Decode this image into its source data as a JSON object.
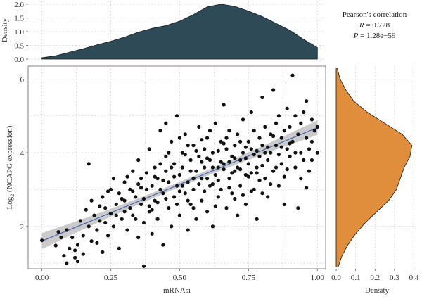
{
  "stats": {
    "title": "Pearson's correlation",
    "r_label": "R",
    "r_text": " = 0.728",
    "p_label": "P",
    "p_text": " = 1.28e−59"
  },
  "chart_data": [
    {
      "type": "scatter",
      "panel": "main",
      "xlabel": "mRNAsi",
      "ylabel_prefix": "Log",
      "ylabel_sub": "2",
      "ylabel_suffix": " (NCAPG expression)",
      "xlim": [
        -0.05,
        1.03
      ],
      "ylim": [
        0.85,
        6.35
      ],
      "x_ticks": [
        0.0,
        0.25,
        0.5,
        0.75,
        1.0
      ],
      "x_tick_labels": [
        "0.00",
        "0.25",
        "0.50",
        "0.75",
        "1.00"
      ],
      "y_ticks": [
        2,
        4,
        6
      ],
      "y_tick_labels": [
        "2",
        "4",
        "6"
      ],
      "grid": true,
      "regression": {
        "slope": 3.08,
        "intercept": 1.6,
        "ci_halfwidth": [
          0.22,
          0.07,
          0.2
        ]
      },
      "points": [
        [
          0.0,
          1.62
        ],
        [
          0.05,
          1.48
        ],
        [
          0.07,
          1.7
        ],
        [
          0.08,
          1.2
        ],
        [
          0.09,
          1.9
        ],
        [
          0.09,
          1.0
        ],
        [
          0.1,
          1.4
        ],
        [
          0.12,
          1.35
        ],
        [
          0.12,
          1.15
        ],
        [
          0.13,
          1.05
        ],
        [
          0.13,
          1.5
        ],
        [
          0.14,
          2.15
        ],
        [
          0.15,
          1.75
        ],
        [
          0.15,
          1.25
        ],
        [
          0.17,
          3.7
        ],
        [
          0.17,
          2.0
        ],
        [
          0.18,
          1.6
        ],
        [
          0.19,
          2.3
        ],
        [
          0.2,
          1.9
        ],
        [
          0.21,
          2.55
        ],
        [
          0.22,
          2.8
        ],
        [
          0.22,
          1.3
        ],
        [
          0.23,
          2.1
        ],
        [
          0.24,
          1.75
        ],
        [
          0.25,
          2.35
        ],
        [
          0.26,
          3.3
        ],
        [
          0.26,
          2.0
        ],
        [
          0.27,
          2.6
        ],
        [
          0.28,
          1.4
        ],
        [
          0.28,
          2.9
        ],
        [
          0.29,
          2.2
        ],
        [
          0.3,
          3.2
        ],
        [
          0.3,
          2.7
        ],
        [
          0.31,
          1.9
        ],
        [
          0.32,
          2.5
        ],
        [
          0.32,
          3.0
        ],
        [
          0.33,
          2.3
        ],
        [
          0.33,
          3.5
        ],
        [
          0.34,
          2.8
        ],
        [
          0.35,
          1.7
        ],
        [
          0.35,
          3.8
        ],
        [
          0.36,
          2.6
        ],
        [
          0.36,
          3.3
        ],
        [
          0.37,
          0.92
        ],
        [
          0.37,
          2.1
        ],
        [
          0.38,
          3.0
        ],
        [
          0.39,
          2.4
        ],
        [
          0.39,
          4.1
        ],
        [
          0.4,
          3.1
        ],
        [
          0.4,
          1.8
        ],
        [
          0.41,
          3.6
        ],
        [
          0.41,
          2.7
        ],
        [
          0.42,
          3.3
        ],
        [
          0.42,
          2.2
        ],
        [
          0.43,
          4.6
        ],
        [
          0.43,
          3.0
        ],
        [
          0.44,
          1.5
        ],
        [
          0.44,
          2.9
        ],
        [
          0.45,
          3.5
        ],
        [
          0.45,
          3.9
        ],
        [
          0.46,
          2.5
        ],
        [
          0.46,
          3.2
        ],
        [
          0.47,
          2.0
        ],
        [
          0.47,
          4.3
        ],
        [
          0.48,
          3.7
        ],
        [
          0.48,
          2.8
        ],
        [
          0.49,
          3.1
        ],
        [
          0.49,
          5.0
        ],
        [
          0.5,
          3.4
        ],
        [
          0.5,
          2.3
        ],
        [
          0.51,
          4.0
        ],
        [
          0.51,
          3.6
        ],
        [
          0.52,
          2.9
        ],
        [
          0.52,
          4.5
        ],
        [
          0.53,
          3.2
        ],
        [
          0.53,
          1.9
        ],
        [
          0.54,
          3.8
        ],
        [
          0.54,
          2.6
        ],
        [
          0.55,
          4.2
        ],
        [
          0.55,
          3.0
        ],
        [
          0.56,
          3.5
        ],
        [
          0.56,
          2.2
        ],
        [
          0.57,
          4.7
        ],
        [
          0.57,
          3.9
        ],
        [
          0.58,
          2.7
        ],
        [
          0.58,
          3.3
        ],
        [
          0.59,
          4.1
        ],
        [
          0.59,
          3.6
        ],
        [
          0.6,
          2.4
        ],
        [
          0.6,
          4.4
        ],
        [
          0.61,
          3.1
        ],
        [
          0.61,
          3.8
        ],
        [
          0.62,
          2.0
        ],
        [
          0.62,
          4.0
        ],
        [
          0.63,
          3.4
        ],
        [
          0.63,
          4.8
        ],
        [
          0.64,
          2.8
        ],
        [
          0.64,
          3.6
        ],
        [
          0.65,
          4.3
        ],
        [
          0.65,
          3.0
        ],
        [
          0.66,
          5.3
        ],
        [
          0.66,
          3.7
        ],
        [
          0.67,
          2.5
        ],
        [
          0.67,
          4.1
        ],
        [
          0.68,
          3.3
        ],
        [
          0.68,
          4.6
        ],
        [
          0.69,
          3.9
        ],
        [
          0.69,
          2.9
        ],
        [
          0.7,
          4.2
        ],
        [
          0.7,
          3.5
        ],
        [
          0.71,
          2.3
        ],
        [
          0.71,
          4.5
        ],
        [
          0.72,
          3.8
        ],
        [
          0.72,
          3.1
        ],
        [
          0.73,
          4.9
        ],
        [
          0.73,
          4.0
        ],
        [
          0.74,
          3.4
        ],
        [
          0.74,
          2.6
        ],
        [
          0.75,
          4.3
        ],
        [
          0.75,
          3.7
        ],
        [
          0.76,
          5.1
        ],
        [
          0.76,
          4.1
        ],
        [
          0.77,
          3.0
        ],
        [
          0.77,
          4.6
        ],
        [
          0.78,
          3.6
        ],
        [
          0.78,
          2.2
        ],
        [
          0.79,
          4.4
        ],
        [
          0.79,
          3.9
        ],
        [
          0.8,
          5.5
        ],
        [
          0.8,
          4.2
        ],
        [
          0.81,
          3.3
        ],
        [
          0.81,
          4.7
        ],
        [
          0.82,
          3.8
        ],
        [
          0.82,
          2.8
        ],
        [
          0.83,
          4.5
        ],
        [
          0.83,
          4.0
        ],
        [
          0.84,
          5.7
        ],
        [
          0.84,
          3.5
        ],
        [
          0.85,
          4.8
        ],
        [
          0.85,
          4.2
        ],
        [
          0.86,
          3.1
        ],
        [
          0.86,
          5.0
        ],
        [
          0.87,
          4.4
        ],
        [
          0.87,
          3.7
        ],
        [
          0.88,
          4.6
        ],
        [
          0.88,
          2.6
        ],
        [
          0.89,
          4.1
        ],
        [
          0.89,
          5.2
        ],
        [
          0.9,
          3.9
        ],
        [
          0.9,
          4.7
        ],
        [
          0.91,
          6.1
        ],
        [
          0.91,
          4.3
        ],
        [
          0.92,
          3.6
        ],
        [
          0.92,
          5.0
        ],
        [
          0.93,
          4.5
        ],
        [
          0.93,
          2.5
        ],
        [
          0.94,
          4.8
        ],
        [
          0.94,
          4.0
        ],
        [
          0.95,
          5.1
        ],
        [
          0.95,
          3.8
        ],
        [
          0.96,
          4.4
        ],
        [
          0.96,
          5.4
        ],
        [
          0.97,
          4.1
        ],
        [
          0.97,
          3.5
        ],
        [
          0.98,
          4.9
        ],
        [
          0.98,
          4.3
        ],
        [
          0.99,
          4.6
        ],
        [
          1.0,
          4.0
        ],
        [
          1.0,
          4.7
        ],
        [
          0.5,
          4.4
        ],
        [
          0.52,
          3.95
        ],
        [
          0.55,
          3.3
        ],
        [
          0.58,
          4.35
        ],
        [
          0.6,
          3.85
        ],
        [
          0.62,
          3.15
        ],
        [
          0.64,
          4.05
        ],
        [
          0.66,
          3.55
        ],
        [
          0.68,
          3.05
        ],
        [
          0.7,
          3.85
        ],
        [
          0.72,
          4.3
        ],
        [
          0.74,
          3.85
        ],
        [
          0.76,
          3.45
        ],
        [
          0.78,
          4.05
        ],
        [
          0.8,
          3.65
        ],
        [
          0.82,
          4.15
        ],
        [
          0.84,
          4.45
        ],
        [
          0.86,
          3.95
        ],
        [
          0.88,
          3.35
        ],
        [
          0.9,
          4.25
        ],
        [
          0.92,
          4.0
        ],
        [
          0.94,
          3.3
        ],
        [
          0.96,
          3.05
        ],
        [
          0.98,
          3.8
        ],
        [
          0.45,
          4.8
        ],
        [
          0.47,
          3.6
        ],
        [
          0.49,
          2.6
        ],
        [
          0.51,
          3.1
        ],
        [
          0.53,
          4.2
        ],
        [
          0.55,
          2.5
        ],
        [
          0.57,
          3.15
        ],
        [
          0.59,
          2.95
        ],
        [
          0.61,
          4.6
        ],
        [
          0.63,
          2.55
        ],
        [
          0.65,
          3.75
        ],
        [
          0.67,
          4.4
        ],
        [
          0.69,
          3.45
        ],
        [
          0.71,
          3.6
        ],
        [
          0.73,
          2.85
        ],
        [
          0.75,
          3.35
        ],
        [
          0.77,
          3.95
        ],
        [
          0.79,
          3.25
        ],
        [
          0.81,
          4.0
        ],
        [
          0.83,
          3.15
        ],
        [
          0.85,
          3.6
        ],
        [
          0.87,
          4.15
        ],
        [
          0.89,
          3.55
        ],
        [
          0.3,
          2.4
        ],
        [
          0.33,
          2.95
        ],
        [
          0.36,
          3.05
        ],
        [
          0.39,
          2.55
        ],
        [
          0.41,
          3.35
        ],
        [
          0.43,
          3.7
        ],
        [
          0.44,
          3.25
        ],
        [
          0.46,
          4.0
        ],
        [
          0.48,
          3.35
        ],
        [
          0.5,
          2.95
        ],
        [
          0.54,
          3.5
        ],
        [
          0.56,
          4.05
        ],
        [
          0.58,
          3.75
        ],
        [
          0.6,
          3.3
        ],
        [
          0.62,
          3.6
        ],
        [
          0.64,
          3.25
        ],
        [
          0.66,
          4.25
        ],
        [
          0.68,
          3.75
        ],
        [
          0.7,
          2.75
        ],
        [
          0.72,
          3.55
        ],
        [
          0.74,
          4.15
        ],
        [
          0.76,
          2.95
        ],
        [
          0.78,
          3.45
        ],
        [
          0.8,
          2.9
        ],
        [
          0.23,
          2.5
        ],
        [
          0.25,
          3.0
        ],
        [
          0.27,
          2.3
        ],
        [
          0.29,
          2.75
        ],
        [
          0.31,
          3.35
        ],
        [
          0.34,
          2.2
        ],
        [
          0.37,
          2.75
        ],
        [
          0.38,
          3.45
        ],
        [
          0.4,
          2.45
        ],
        [
          0.42,
          2.65
        ],
        [
          0.2,
          1.55
        ],
        [
          0.16,
          2.45
        ],
        [
          0.11,
          1.7
        ],
        [
          0.06,
          1.85
        ],
        [
          0.18,
          2.7
        ],
        [
          0.24,
          2.95
        ],
        [
          0.21,
          2.15
        ],
        [
          0.35,
          3.15
        ],
        [
          0.45,
          2.75
        ],
        [
          0.53,
          2.7
        ]
      ]
    },
    {
      "type": "area",
      "panel": "top-marginal",
      "xlabel": "",
      "ylabel": "Density",
      "color": "#2e4a56",
      "ylim": [
        0,
        2.1
      ],
      "y_ticks": [
        0.0,
        0.5,
        1.0,
        1.5,
        2.0
      ],
      "y_tick_labels": [
        "0.0",
        "0.5",
        "1.0",
        "1.5",
        "2.0"
      ],
      "x": [
        0.0,
        0.05,
        0.1,
        0.15,
        0.2,
        0.25,
        0.3,
        0.35,
        0.4,
        0.45,
        0.5,
        0.55,
        0.6,
        0.65,
        0.7,
        0.75,
        0.8,
        0.85,
        0.9,
        0.95,
        1.0
      ],
      "density": [
        0.05,
        0.12,
        0.25,
        0.38,
        0.52,
        0.65,
        0.8,
        0.98,
        1.12,
        1.22,
        1.38,
        1.62,
        1.9,
        2.0,
        1.92,
        1.75,
        1.55,
        1.3,
        1.05,
        0.72,
        0.42
      ]
    },
    {
      "type": "area",
      "panel": "right-marginal",
      "xlabel": "Density",
      "ylabel": "",
      "color": "#e08d3c",
      "xlim": [
        0,
        0.42
      ],
      "x_ticks": [
        0.0,
        0.1,
        0.2,
        0.3,
        0.4
      ],
      "x_tick_labels": [
        "0.0",
        "0.1",
        "0.2",
        "0.3",
        "0.4"
      ],
      "y": [
        0.9,
        1.2,
        1.5,
        1.8,
        2.1,
        2.4,
        2.7,
        3.0,
        3.3,
        3.6,
        3.9,
        4.2,
        4.5,
        4.8,
        5.1,
        5.4,
        5.7,
        6.0,
        6.3
      ],
      "density": [
        0.01,
        0.03,
        0.06,
        0.1,
        0.15,
        0.21,
        0.27,
        0.31,
        0.33,
        0.35,
        0.38,
        0.39,
        0.34,
        0.25,
        0.16,
        0.09,
        0.05,
        0.02,
        0.005
      ]
    }
  ]
}
